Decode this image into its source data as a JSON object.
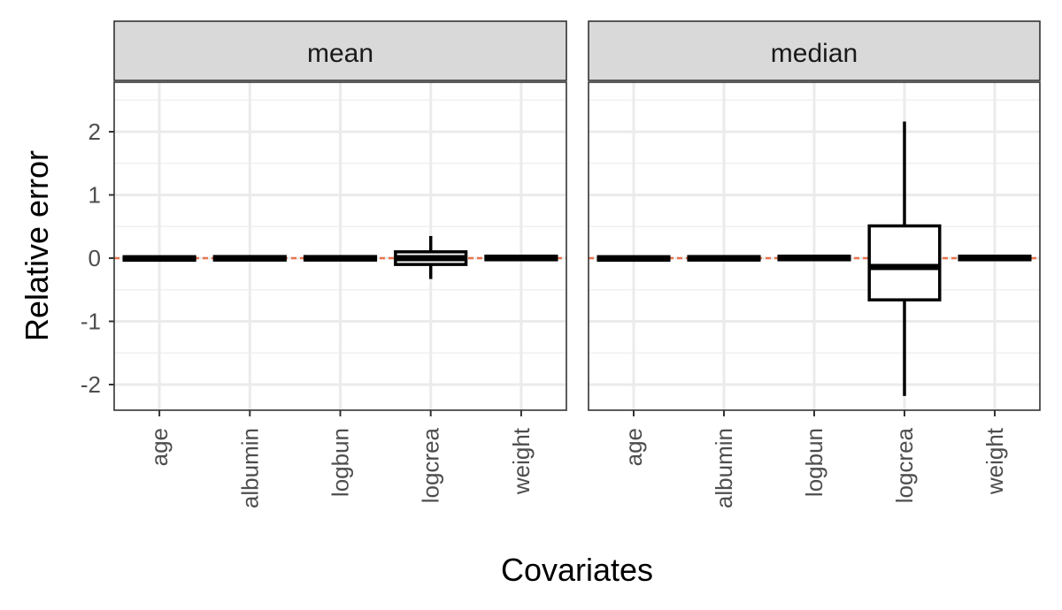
{
  "chart_data": {
    "type": "boxplot",
    "xlabel": "Covariates",
    "ylabel": "Relative error",
    "ylim": [
      -2.4,
      2.75
    ],
    "yticks": [
      -2,
      -1,
      0,
      1,
      2
    ],
    "categories": [
      "age",
      "albumin",
      "logbun",
      "logcrea",
      "weight"
    ],
    "reference_line": {
      "y": 0,
      "color": "#E8744F"
    },
    "grid": true,
    "panels": [
      {
        "label": "mean",
        "boxes": [
          {
            "category": "age",
            "whisker_low": -0.02,
            "q1": -0.01,
            "median": -0.005,
            "q3": 0.0,
            "whisker_high": 0.005
          },
          {
            "category": "albumin",
            "whisker_low": -0.015,
            "q1": -0.01,
            "median": 0.0,
            "q3": 0.005,
            "whisker_high": 0.01
          },
          {
            "category": "logbun",
            "whisker_low": -0.015,
            "q1": -0.01,
            "median": 0.0,
            "q3": 0.005,
            "whisker_high": 0.01
          },
          {
            "category": "logcrea",
            "whisker_low": -0.33,
            "q1": -0.1,
            "median": 0.0,
            "q3": 0.1,
            "whisker_high": 0.35
          },
          {
            "category": "weight",
            "whisker_low": -0.01,
            "q1": -0.005,
            "median": 0.005,
            "q3": 0.01,
            "whisker_high": 0.02
          }
        ]
      },
      {
        "label": "median",
        "boxes": [
          {
            "category": "age",
            "whisker_low": -0.02,
            "q1": -0.01,
            "median": -0.005,
            "q3": 0.0,
            "whisker_high": 0.005
          },
          {
            "category": "albumin",
            "whisker_low": -0.015,
            "q1": -0.01,
            "median": 0.0,
            "q3": 0.005,
            "whisker_high": 0.01
          },
          {
            "category": "logbun",
            "whisker_low": -0.01,
            "q1": -0.005,
            "median": 0.005,
            "q3": 0.01,
            "whisker_high": 0.015
          },
          {
            "category": "logcrea",
            "whisker_low": -2.18,
            "q1": -0.66,
            "median": -0.14,
            "q3": 0.51,
            "whisker_high": 2.16
          },
          {
            "category": "weight",
            "whisker_low": -0.01,
            "q1": -0.005,
            "median": 0.005,
            "q3": 0.01,
            "whisker_high": 0.02
          }
        ]
      }
    ]
  }
}
